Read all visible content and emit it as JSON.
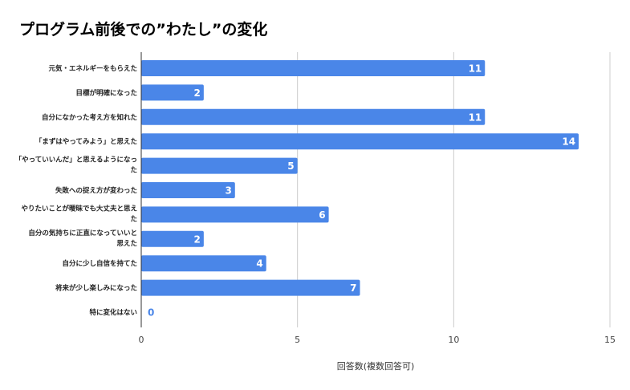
{
  "chart_data": {
    "type": "bar",
    "orientation": "horizontal",
    "title": "プログラム前後での”わたし”の変化",
    "xlabel": "回答数(複数回答可)",
    "ylabel": "",
    "xlim": [
      0,
      15
    ],
    "xticks": [
      "0",
      "5",
      "10",
      "15"
    ],
    "grid": true,
    "bar_color": "#4a86e8",
    "categories": [
      [
        "元気・エネルギーをもらえた"
      ],
      [
        "目標が明確になった"
      ],
      [
        "自分になかった考え方を知れた"
      ],
      [
        "「まずはやってみよう」と思えた"
      ],
      [
        "「やっていいんだ」と思えるようになっ",
        "た"
      ],
      [
        "失敗への捉え方が変わった"
      ],
      [
        "やりたいことが曖昧でも大丈夫と思え",
        "た"
      ],
      [
        "自分の気持ちに正直になっていいと",
        "思えた"
      ],
      [
        "自分に少し自信を持てた"
      ],
      [
        "将来が少し楽しみになった"
      ],
      [
        "特に変化はない"
      ]
    ],
    "values": [
      11,
      2,
      11,
      14,
      5,
      3,
      6,
      2,
      4,
      7,
      0
    ]
  }
}
